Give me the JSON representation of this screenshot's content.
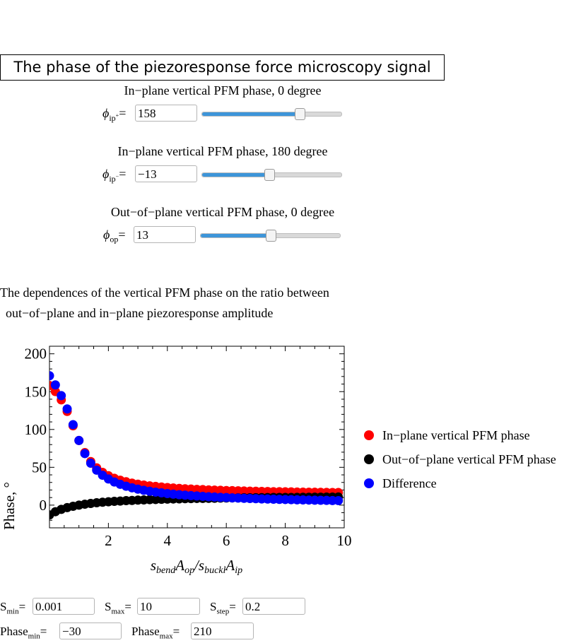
{
  "title": "The phase of the piezoresponse force microscopy signal",
  "controls": [
    {
      "label": "In−plane vertical PFM phase, 0 degree",
      "symbol": "ϕ",
      "sub": "ip",
      "sup": "+",
      "value": "158",
      "slider_fraction": 0.7
    },
    {
      "label": "In−plane vertical PFM phase, 180 degree",
      "symbol": "ϕ",
      "sub": "ip",
      "sup": "−",
      "value": "−13",
      "slider_fraction": 0.48
    },
    {
      "label": "Out−of−plane vertical PFM phase, 0 degree",
      "symbol": "ϕ",
      "sub": "op",
      "sup": "",
      "value": "13",
      "slider_fraction": 0.5
    }
  ],
  "description": [
    "The dependences of the vertical PFM phase on the ratio between",
    "out−of−plane and in−plane piezoresponse amplitude"
  ],
  "range_controls": {
    "smin": {
      "label": "S",
      "sub": "min",
      "value": "0.001"
    },
    "smax": {
      "label": "S",
      "sub": "max",
      "value": "10"
    },
    "sstep": {
      "label": "S",
      "sub": "step",
      "value": "0.2"
    },
    "phasemin": {
      "label": "Phase",
      "sub": "min",
      "value": "−30"
    },
    "phasemax": {
      "label": "Phase",
      "sub": "max",
      "value": "210"
    }
  },
  "chart_data": {
    "type": "scatter",
    "ylabel": "Phase, °",
    "xlabel": "s_bend A_op / s_buckl A_ip",
    "xlim": [
      0.001,
      10
    ],
    "ylim": [
      -30,
      210
    ],
    "xticks": [
      "2",
      "4",
      "6",
      "8",
      "10"
    ],
    "yticks": [
      "0",
      "50",
      "100",
      "150",
      "200"
    ],
    "legend_position": "right",
    "x": [
      0.001,
      0.201,
      0.401,
      0.601,
      0.801,
      1.001,
      1.201,
      1.401,
      1.601,
      1.801,
      2.001,
      2.201,
      2.401,
      2.601,
      2.801,
      3.001,
      3.201,
      3.401,
      3.601,
      3.801,
      4.001,
      4.201,
      4.401,
      4.601,
      4.801,
      5.001,
      5.201,
      5.401,
      5.601,
      5.801,
      6.001,
      6.201,
      6.401,
      6.601,
      6.801,
      7.001,
      7.201,
      7.401,
      7.601,
      7.801,
      8.001,
      8.201,
      8.401,
      8.601,
      8.801,
      9.001,
      9.201,
      9.401,
      9.601,
      9.801
    ],
    "series": [
      {
        "name": "In−plane vertical PFM phase",
        "color": "#ff0000",
        "values": [
          158.0,
          150.1,
          139.1,
          123.8,
          104.8,
          85.4,
          69.4,
          57.6,
          49.3,
          43.3,
          38.9,
          35.5,
          32.9,
          30.9,
          29.1,
          27.7,
          26.5,
          25.5,
          24.7,
          23.9,
          23.2,
          22.6,
          22.1,
          21.6,
          21.2,
          20.8,
          20.5,
          20.1,
          19.9,
          19.6,
          19.3,
          19.1,
          18.9,
          18.7,
          18.5,
          18.3,
          18.1,
          18.0,
          17.8,
          17.7,
          17.6,
          17.5,
          17.3,
          17.2,
          17.1,
          17.0,
          16.9,
          16.8,
          16.7,
          16.7
        ]
      },
      {
        "name": "Out−of−plane vertical PFM phase",
        "color": "#000000",
        "values": [
          -13.0,
          -8.7,
          -5.6,
          -3.3,
          -1.5,
          0.0,
          1.2,
          2.2,
          3.1,
          3.8,
          4.4,
          5.0,
          5.4,
          5.9,
          6.2,
          6.6,
          6.9,
          7.2,
          7.4,
          7.7,
          7.9,
          8.1,
          8.3,
          8.5,
          8.6,
          8.8,
          8.9,
          9.0,
          9.1,
          9.3,
          9.4,
          9.5,
          9.6,
          9.7,
          9.7,
          9.8,
          9.9,
          10.0,
          10.1,
          10.1,
          10.2,
          10.2,
          10.3,
          10.4,
          10.4,
          10.5,
          10.5,
          10.6,
          10.6,
          10.7
        ]
      },
      {
        "name": "Difference",
        "color": "#0000ff",
        "values": [
          171.0,
          158.9,
          144.7,
          127.1,
          106.3,
          85.4,
          68.1,
          55.4,
          46.2,
          39.5,
          34.5,
          30.6,
          27.5,
          25.0,
          22.9,
          21.1,
          19.6,
          18.3,
          17.2,
          16.2,
          15.3,
          14.5,
          13.8,
          13.2,
          12.6,
          12.1,
          11.6,
          11.1,
          10.7,
          10.3,
          10.0,
          9.6,
          9.3,
          9.0,
          8.7,
          8.5,
          8.2,
          8.0,
          7.8,
          7.6,
          7.4,
          7.2,
          7.0,
          6.9,
          6.7,
          6.5,
          6.4,
          6.3,
          6.1,
          6.0
        ]
      }
    ]
  }
}
